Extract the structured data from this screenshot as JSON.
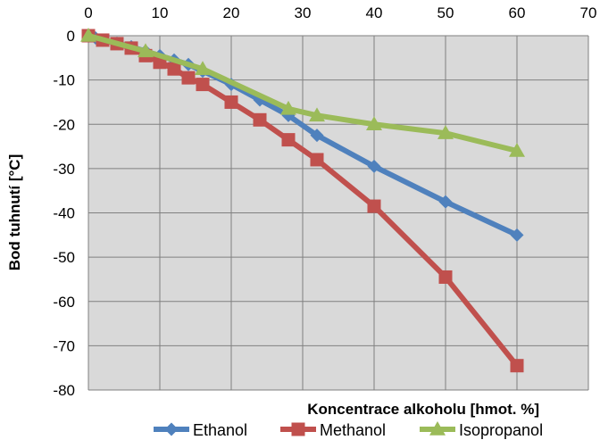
{
  "chart_data": {
    "type": "line",
    "xlabel": "Koncentrace alkoholu [hmot. %]",
    "ylabel": "Bod tuhnutí [°C]",
    "xlim": [
      0,
      70
    ],
    "ylim": [
      -80,
      0
    ],
    "x_ticks": [
      "0",
      "10",
      "20",
      "30",
      "40",
      "50",
      "60",
      "70"
    ],
    "y_ticks": [
      "0",
      "-10",
      "-20",
      "-30",
      "-40",
      "-50",
      "-60",
      "-70",
      "-80"
    ],
    "x_axis_position": "top",
    "grid": true,
    "legend_position": "bottom",
    "series": [
      {
        "name": "Ethanol",
        "color": "#4f81bd",
        "marker": "diamond",
        "x": [
          0,
          1,
          2,
          4,
          6,
          8,
          10,
          12,
          14,
          16,
          20,
          24,
          28,
          32,
          40,
          50,
          60
        ],
        "y": [
          0,
          -0.5,
          -1,
          -1.7,
          -2.5,
          -3.5,
          -4.5,
          -5.5,
          -6.5,
          -8,
          -11,
          -14.5,
          -18,
          -22.5,
          -29.5,
          -37.5,
          -45
        ]
      },
      {
        "name": "Methanol",
        "color": "#c0504d",
        "marker": "square",
        "x": [
          0,
          2,
          4,
          6,
          8,
          10,
          12,
          14,
          16,
          20,
          24,
          28,
          32,
          40,
          50,
          60
        ],
        "y": [
          0,
          -1,
          -1.8,
          -2.8,
          -4.5,
          -6,
          -7.5,
          -9.5,
          -11,
          -15,
          -19,
          -23.5,
          -28,
          -38.5,
          -54.5,
          -74.5
        ]
      },
      {
        "name": "Isopropanol",
        "color": "#9bbb59",
        "marker": "triangle",
        "x": [
          0,
          8,
          16,
          28,
          32,
          40,
          50,
          60
        ],
        "y": [
          0,
          -3.5,
          -7.5,
          -16.5,
          -18,
          -20,
          -22,
          -26
        ]
      }
    ]
  }
}
